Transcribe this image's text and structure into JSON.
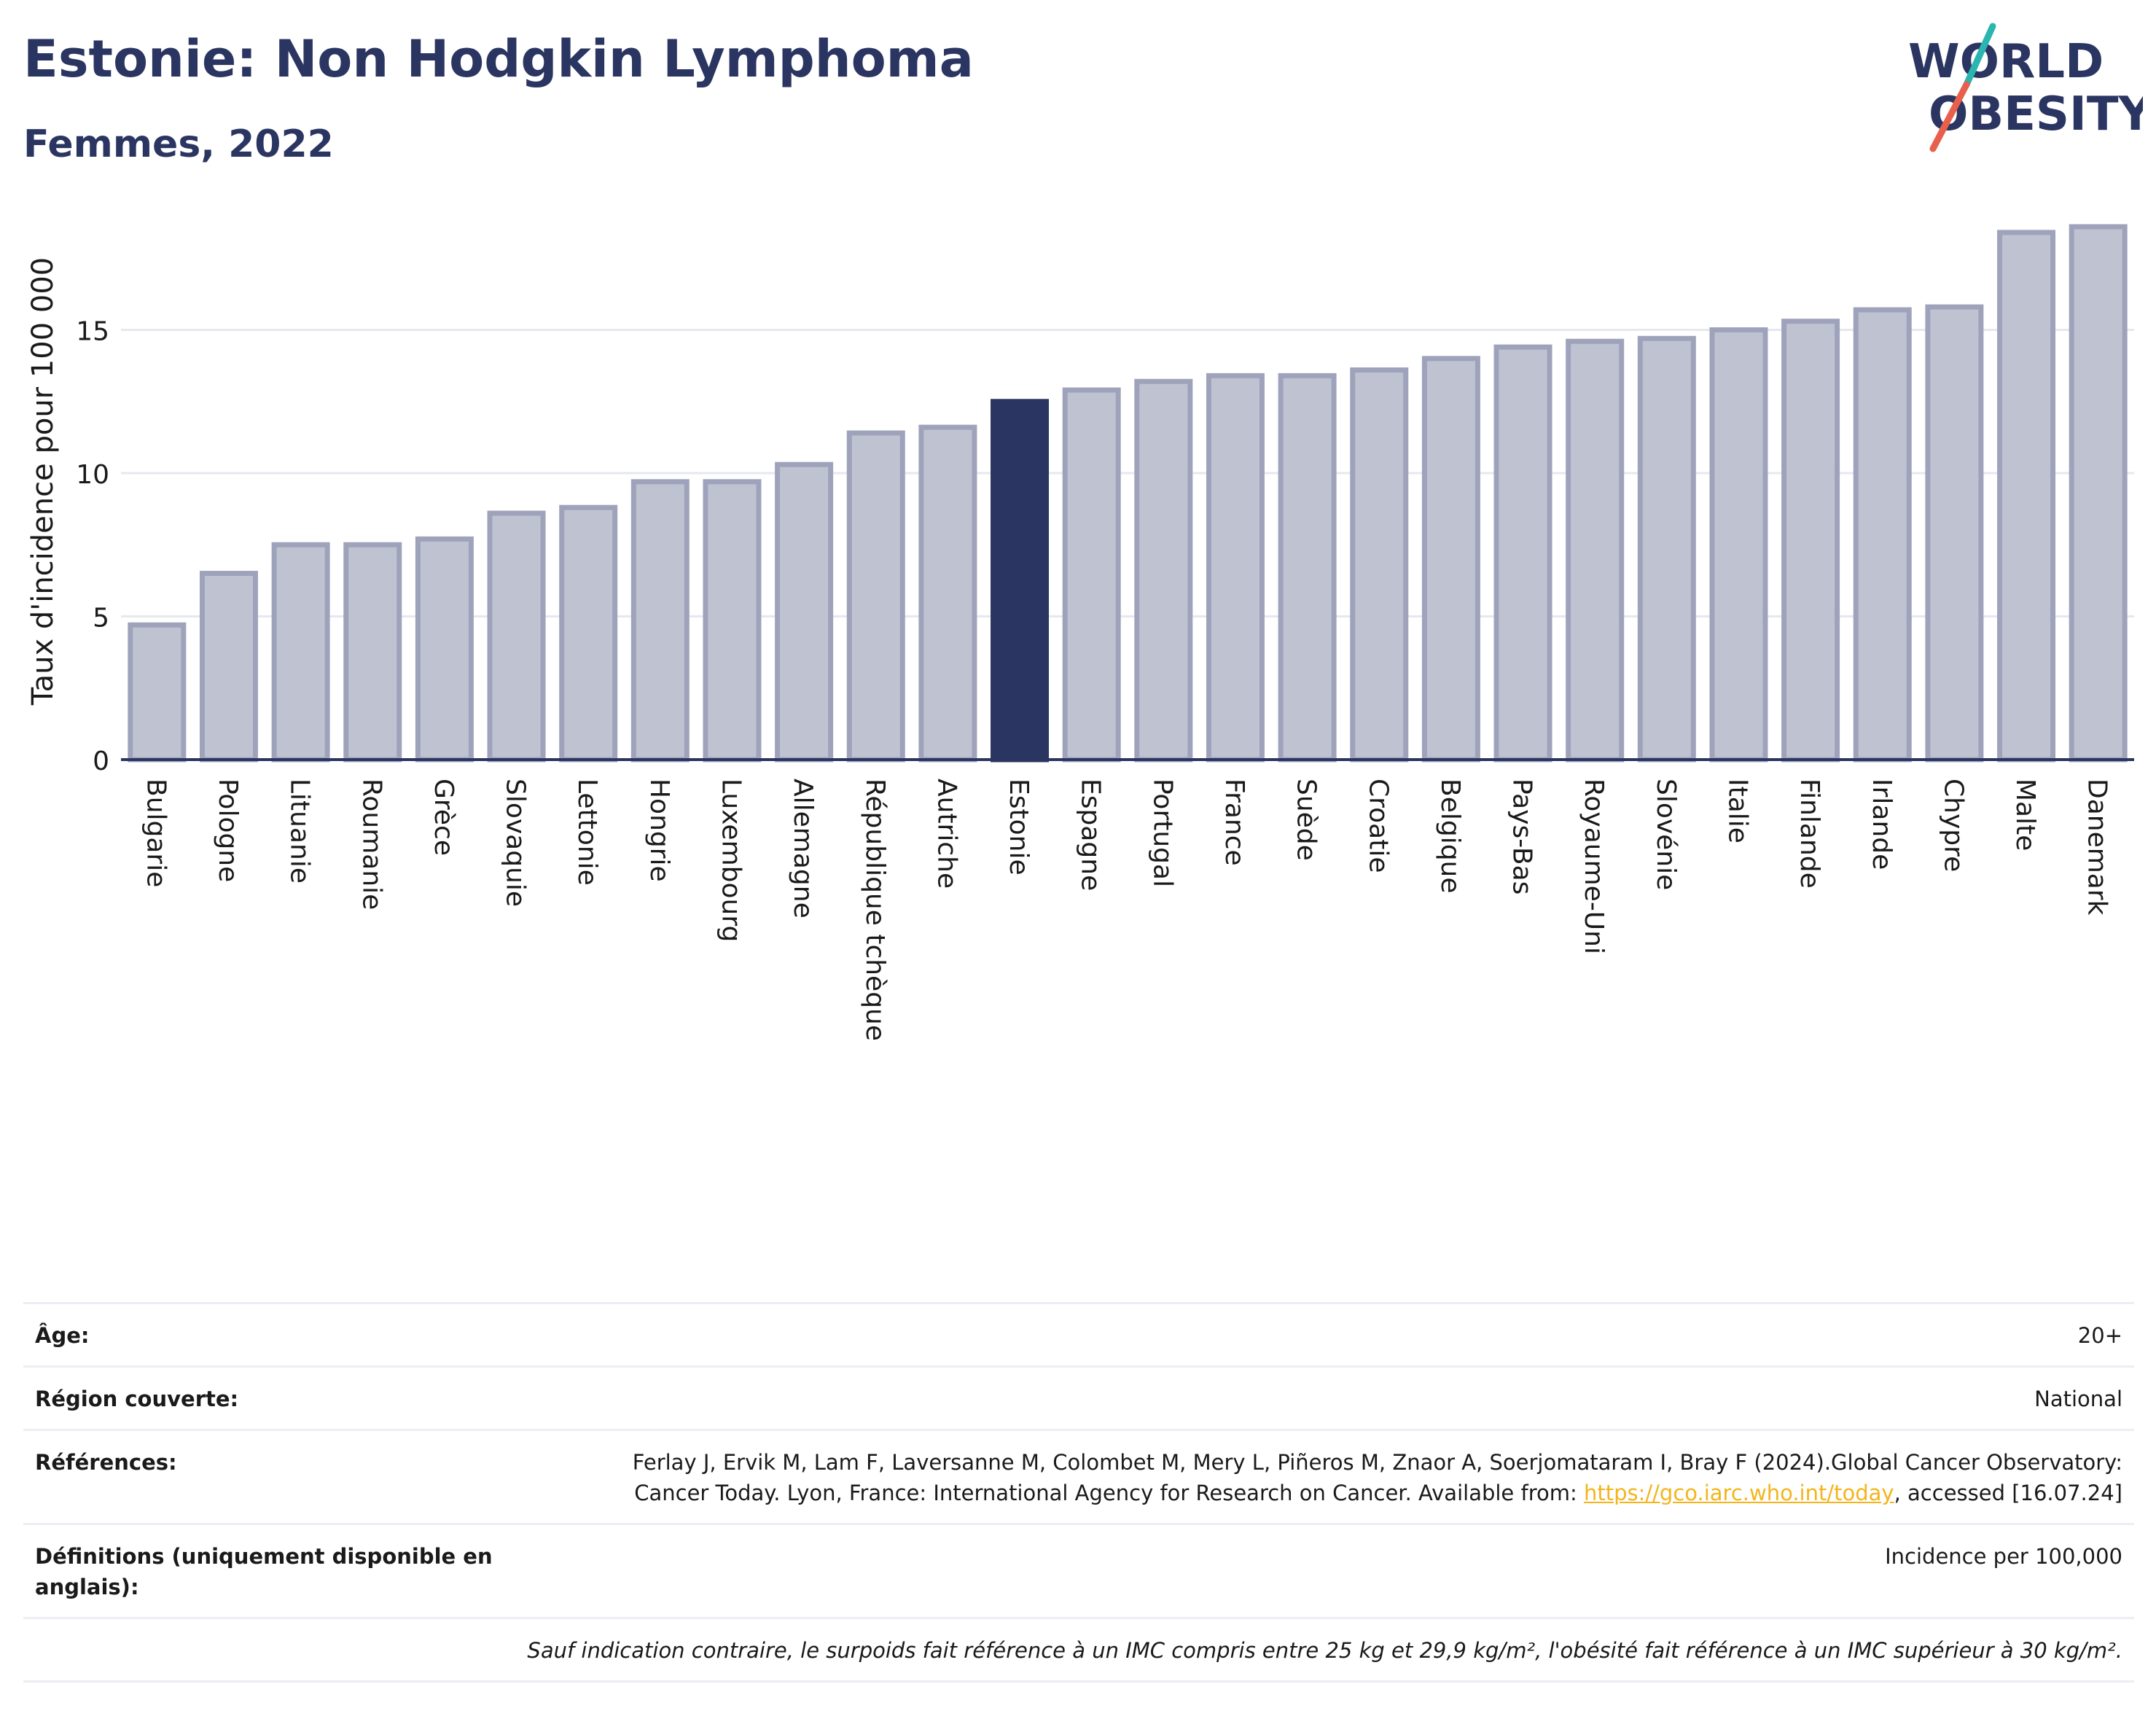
{
  "header": {
    "title": "Estonie: Non Hodgkin Lymphoma",
    "subtitle": "Femmes, 2022"
  },
  "logo": {
    "line1": "WORLD",
    "line2": "OBESITY",
    "colors": {
      "text": "#2b3561",
      "slash_teal": "#2bb5b0",
      "slash_red": "#e8604c"
    }
  },
  "chart_data": {
    "type": "bar",
    "title": "Estonie: Non Hodgkin Lymphoma",
    "subtitle": "Femmes, 2022",
    "xlabel": "",
    "ylabel": "Taux d'incidence pour 100 000",
    "ylim": [
      0,
      19
    ],
    "yticks": [
      0,
      5,
      10,
      15
    ],
    "grid": true,
    "highlight": "Estonie",
    "colors": {
      "bar": "#bfc3d1",
      "bar_border": "#9ea3bb",
      "highlight": "#2b3561",
      "grid": "#e6e8ef",
      "axis": "#2b3561"
    },
    "categories": [
      "Bulgarie",
      "Pologne",
      "Lituanie",
      "Roumanie",
      "Grèce",
      "Slovaquie",
      "Lettonie",
      "Hongrie",
      "Luxembourg",
      "Allemagne",
      "République tchèque",
      "Autriche",
      "Estonie",
      "Espagne",
      "Portugal",
      "France",
      "Suède",
      "Croatie",
      "Belgique",
      "Pays-Bas",
      "Royaume-Uni",
      "Slovénie",
      "Italie",
      "Finlande",
      "Irlande",
      "Chypre",
      "Malte",
      "Danemark"
    ],
    "values": [
      4.7,
      6.5,
      7.5,
      7.5,
      7.7,
      8.6,
      8.8,
      9.7,
      9.7,
      10.3,
      11.4,
      11.6,
      12.5,
      12.9,
      13.2,
      13.4,
      13.4,
      13.6,
      14.0,
      14.4,
      14.6,
      14.7,
      15.0,
      15.3,
      15.7,
      15.8,
      18.4,
      18.6
    ]
  },
  "meta": {
    "age_label": "Âge:",
    "age_value": "20+",
    "region_label": "Région couverte:",
    "region_value": "National",
    "refs_label": "Références:",
    "refs_text1": "Ferlay J, Ervik M, Lam F, Laversanne M, Colombet M, Mery L, Piñeros M, Znaor A, Soerjomataram I, Bray F (2024).Global Cancer Observatory: Cancer Today. Lyon, France: International Agency for Research on Cancer. Available from: ",
    "refs_link": "https://gco.iarc.who.int/today",
    "refs_text2": ", accessed [16.07.24]",
    "defs_label": "Définitions (uniquement disponible en anglais):",
    "defs_value": "Incidence per 100,000",
    "note": "Sauf indication contraire, le surpoids fait référence à un IMC compris entre 25 kg et 29,9 kg/m², l'obésité fait référence à un IMC supérieur à 30 kg/m²."
  }
}
